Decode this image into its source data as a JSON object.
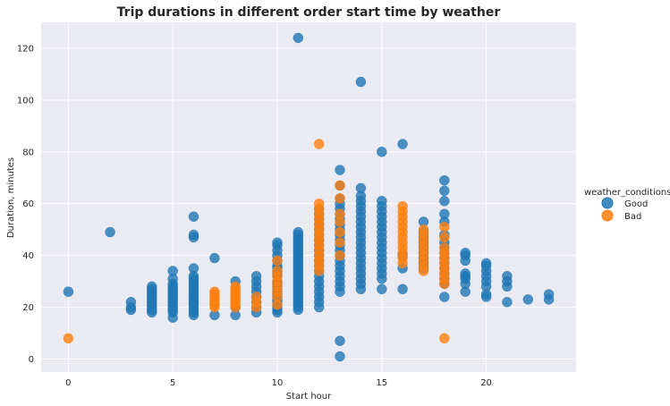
{
  "chart_data": {
    "type": "scatter",
    "title": "Trip durations in different order start time by weather",
    "xlabel": "Start hour",
    "ylabel": "Duration, minutes",
    "xlim": [
      -1.3,
      24.3
    ],
    "ylim": [
      -5,
      130
    ],
    "xticks": [
      0,
      5,
      10,
      15,
      20
    ],
    "yticks": [
      0,
      20,
      40,
      60,
      80,
      100,
      120
    ],
    "grid": true,
    "legend": {
      "title": "weather_conditions",
      "placement": "right"
    },
    "series": [
      {
        "name": "Good",
        "color": "#1f77b4",
        "points": [
          [
            0,
            26
          ],
          [
            2,
            49
          ],
          [
            3,
            19
          ],
          [
            3,
            20
          ],
          [
            3,
            22
          ],
          [
            4,
            18
          ],
          [
            4,
            19
          ],
          [
            4,
            20
          ],
          [
            4,
            21
          ],
          [
            4,
            22
          ],
          [
            4,
            23
          ],
          [
            4,
            24
          ],
          [
            4,
            25
          ],
          [
            4,
            26
          ],
          [
            4,
            27
          ],
          [
            4,
            28
          ],
          [
            5,
            16
          ],
          [
            5,
            18
          ],
          [
            5,
            19
          ],
          [
            5,
            20
          ],
          [
            5,
            21
          ],
          [
            5,
            22
          ],
          [
            5,
            23
          ],
          [
            5,
            24
          ],
          [
            5,
            25
          ],
          [
            5,
            26
          ],
          [
            5,
            27
          ],
          [
            5,
            28
          ],
          [
            5,
            29
          ],
          [
            5,
            31
          ],
          [
            5,
            34
          ],
          [
            6,
            17
          ],
          [
            6,
            18
          ],
          [
            6,
            19
          ],
          [
            6,
            20
          ],
          [
            6,
            21
          ],
          [
            6,
            22
          ],
          [
            6,
            23
          ],
          [
            6,
            24
          ],
          [
            6,
            25
          ],
          [
            6,
            26
          ],
          [
            6,
            27
          ],
          [
            6,
            28
          ],
          [
            6,
            29
          ],
          [
            6,
            30
          ],
          [
            6,
            31
          ],
          [
            6,
            32
          ],
          [
            6,
            35
          ],
          [
            6,
            47
          ],
          [
            6,
            48
          ],
          [
            6,
            55
          ],
          [
            7,
            17
          ],
          [
            7,
            39
          ],
          [
            8,
            17
          ],
          [
            8,
            20
          ],
          [
            8,
            30
          ],
          [
            9,
            18
          ],
          [
            9,
            20
          ],
          [
            9,
            22
          ],
          [
            9,
            24
          ],
          [
            9,
            26
          ],
          [
            9,
            28
          ],
          [
            9,
            30
          ],
          [
            9,
            32
          ],
          [
            10,
            18
          ],
          [
            10,
            19
          ],
          [
            10,
            20
          ],
          [
            10,
            21
          ],
          [
            10,
            22
          ],
          [
            10,
            23
          ],
          [
            10,
            24
          ],
          [
            10,
            25
          ],
          [
            10,
            26
          ],
          [
            10,
            27
          ],
          [
            10,
            28
          ],
          [
            10,
            29
          ],
          [
            10,
            30
          ],
          [
            10,
            32
          ],
          [
            10,
            33
          ],
          [
            10,
            34
          ],
          [
            10,
            35
          ],
          [
            10,
            36
          ],
          [
            10,
            38
          ],
          [
            10,
            40
          ],
          [
            10,
            42
          ],
          [
            10,
            44
          ],
          [
            10,
            45
          ],
          [
            11,
            19
          ],
          [
            11,
            20
          ],
          [
            11,
            21
          ],
          [
            11,
            22
          ],
          [
            11,
            23
          ],
          [
            11,
            24
          ],
          [
            11,
            25
          ],
          [
            11,
            26
          ],
          [
            11,
            27
          ],
          [
            11,
            28
          ],
          [
            11,
            29
          ],
          [
            11,
            30
          ],
          [
            11,
            31
          ],
          [
            11,
            32
          ],
          [
            11,
            33
          ],
          [
            11,
            34
          ],
          [
            11,
            35
          ],
          [
            11,
            36
          ],
          [
            11,
            37
          ],
          [
            11,
            38
          ],
          [
            11,
            39
          ],
          [
            11,
            40
          ],
          [
            11,
            41
          ],
          [
            11,
            42
          ],
          [
            11,
            43
          ],
          [
            11,
            44
          ],
          [
            11,
            45
          ],
          [
            11,
            46
          ],
          [
            11,
            47
          ],
          [
            11,
            48
          ],
          [
            11,
            49
          ],
          [
            11,
            124
          ],
          [
            12,
            20
          ],
          [
            12,
            22
          ],
          [
            12,
            24
          ],
          [
            12,
            26
          ],
          [
            12,
            28
          ],
          [
            12,
            30
          ],
          [
            12,
            32
          ],
          [
            12,
            34
          ],
          [
            12,
            36
          ],
          [
            12,
            38
          ],
          [
            12,
            40
          ],
          [
            12,
            42
          ],
          [
            12,
            44
          ],
          [
            12,
            46
          ],
          [
            12,
            48
          ],
          [
            12,
            50
          ],
          [
            12,
            52
          ],
          [
            12,
            54
          ],
          [
            12,
            56
          ],
          [
            12,
            58
          ],
          [
            13,
            1
          ],
          [
            13,
            7
          ],
          [
            13,
            26
          ],
          [
            13,
            28
          ],
          [
            13,
            30
          ],
          [
            13,
            32
          ],
          [
            13,
            34
          ],
          [
            13,
            36
          ],
          [
            13,
            38
          ],
          [
            13,
            40
          ],
          [
            13,
            42
          ],
          [
            13,
            44
          ],
          [
            13,
            46
          ],
          [
            13,
            48
          ],
          [
            13,
            50
          ],
          [
            13,
            52
          ],
          [
            13,
            54
          ],
          [
            13,
            56
          ],
          [
            13,
            58
          ],
          [
            13,
            60
          ],
          [
            13,
            62
          ],
          [
            13,
            67
          ],
          [
            13,
            73
          ],
          [
            14,
            27
          ],
          [
            14,
            29
          ],
          [
            14,
            31
          ],
          [
            14,
            33
          ],
          [
            14,
            35
          ],
          [
            14,
            37
          ],
          [
            14,
            39
          ],
          [
            14,
            41
          ],
          [
            14,
            43
          ],
          [
            14,
            45
          ],
          [
            14,
            47
          ],
          [
            14,
            49
          ],
          [
            14,
            51
          ],
          [
            14,
            53
          ],
          [
            14,
            55
          ],
          [
            14,
            57
          ],
          [
            14,
            59
          ],
          [
            14,
            61
          ],
          [
            14,
            63
          ],
          [
            14,
            66
          ],
          [
            14,
            107
          ],
          [
            15,
            27
          ],
          [
            15,
            31
          ],
          [
            15,
            33
          ],
          [
            15,
            35
          ],
          [
            15,
            37
          ],
          [
            15,
            39
          ],
          [
            15,
            41
          ],
          [
            15,
            43
          ],
          [
            15,
            45
          ],
          [
            15,
            47
          ],
          [
            15,
            49
          ],
          [
            15,
            51
          ],
          [
            15,
            53
          ],
          [
            15,
            55
          ],
          [
            15,
            57
          ],
          [
            15,
            59
          ],
          [
            15,
            61
          ],
          [
            15,
            80
          ],
          [
            16,
            27
          ],
          [
            16,
            35
          ],
          [
            16,
            40
          ],
          [
            16,
            83
          ],
          [
            17,
            35
          ],
          [
            17,
            37
          ],
          [
            17,
            39
          ],
          [
            17,
            41
          ],
          [
            17,
            43
          ],
          [
            17,
            45
          ],
          [
            17,
            47
          ],
          [
            17,
            49
          ],
          [
            17,
            53
          ],
          [
            18,
            24
          ],
          [
            18,
            29
          ],
          [
            18,
            31
          ],
          [
            18,
            33
          ],
          [
            18,
            35
          ],
          [
            18,
            37
          ],
          [
            18,
            39
          ],
          [
            18,
            41
          ],
          [
            18,
            43
          ],
          [
            18,
            45
          ],
          [
            18,
            48
          ],
          [
            18,
            53
          ],
          [
            18,
            56
          ],
          [
            18,
            61
          ],
          [
            18,
            65
          ],
          [
            18,
            69
          ],
          [
            19,
            26
          ],
          [
            19,
            29
          ],
          [
            19,
            31
          ],
          [
            19,
            32
          ],
          [
            19,
            33
          ],
          [
            19,
            38
          ],
          [
            19,
            40
          ],
          [
            19,
            41
          ],
          [
            20,
            24
          ],
          [
            20,
            25
          ],
          [
            20,
            28
          ],
          [
            20,
            30
          ],
          [
            20,
            32
          ],
          [
            20,
            34
          ],
          [
            20,
            36
          ],
          [
            20,
            37
          ],
          [
            21,
            22
          ],
          [
            21,
            28
          ],
          [
            21,
            30
          ],
          [
            21,
            32
          ],
          [
            22,
            23
          ],
          [
            23,
            23
          ],
          [
            23,
            25
          ]
        ]
      },
      {
        "name": "Bad",
        "color": "#ff7f0e",
        "points": [
          [
            0,
            8
          ],
          [
            7,
            20
          ],
          [
            7,
            21
          ],
          [
            7,
            22
          ],
          [
            7,
            23
          ],
          [
            7,
            24
          ],
          [
            7,
            25
          ],
          [
            7,
            26
          ],
          [
            8,
            20
          ],
          [
            8,
            21
          ],
          [
            8,
            22
          ],
          [
            8,
            23
          ],
          [
            8,
            24
          ],
          [
            8,
            25
          ],
          [
            8,
            26
          ],
          [
            8,
            27
          ],
          [
            8,
            28
          ],
          [
            9,
            20
          ],
          [
            9,
            22
          ],
          [
            9,
            24
          ],
          [
            10,
            21
          ],
          [
            10,
            24
          ],
          [
            10,
            26
          ],
          [
            10,
            28
          ],
          [
            10,
            30
          ],
          [
            10,
            32
          ],
          [
            10,
            34
          ],
          [
            10,
            38
          ],
          [
            12,
            34
          ],
          [
            12,
            36
          ],
          [
            12,
            38
          ],
          [
            12,
            40
          ],
          [
            12,
            42
          ],
          [
            12,
            44
          ],
          [
            12,
            46
          ],
          [
            12,
            48
          ],
          [
            12,
            50
          ],
          [
            12,
            52
          ],
          [
            12,
            54
          ],
          [
            12,
            56
          ],
          [
            12,
            58
          ],
          [
            12,
            60
          ],
          [
            12,
            83
          ],
          [
            13,
            40
          ],
          [
            13,
            45
          ],
          [
            13,
            49
          ],
          [
            13,
            53
          ],
          [
            13,
            56
          ],
          [
            13,
            62
          ],
          [
            13,
            67
          ],
          [
            16,
            37
          ],
          [
            16,
            39
          ],
          [
            16,
            41
          ],
          [
            16,
            43
          ],
          [
            16,
            45
          ],
          [
            16,
            47
          ],
          [
            16,
            49
          ],
          [
            16,
            51
          ],
          [
            16,
            53
          ],
          [
            16,
            55
          ],
          [
            16,
            57
          ],
          [
            16,
            59
          ],
          [
            17,
            34
          ],
          [
            17,
            36
          ],
          [
            17,
            38
          ],
          [
            17,
            40
          ],
          [
            17,
            42
          ],
          [
            17,
            44
          ],
          [
            17,
            46
          ],
          [
            17,
            48
          ],
          [
            17,
            50
          ],
          [
            18,
            8
          ],
          [
            18,
            29
          ],
          [
            18,
            31
          ],
          [
            18,
            33
          ],
          [
            18,
            35
          ],
          [
            18,
            37
          ],
          [
            18,
            39
          ],
          [
            18,
            41
          ],
          [
            18,
            43
          ],
          [
            18,
            47
          ],
          [
            18,
            51
          ]
        ]
      }
    ]
  }
}
